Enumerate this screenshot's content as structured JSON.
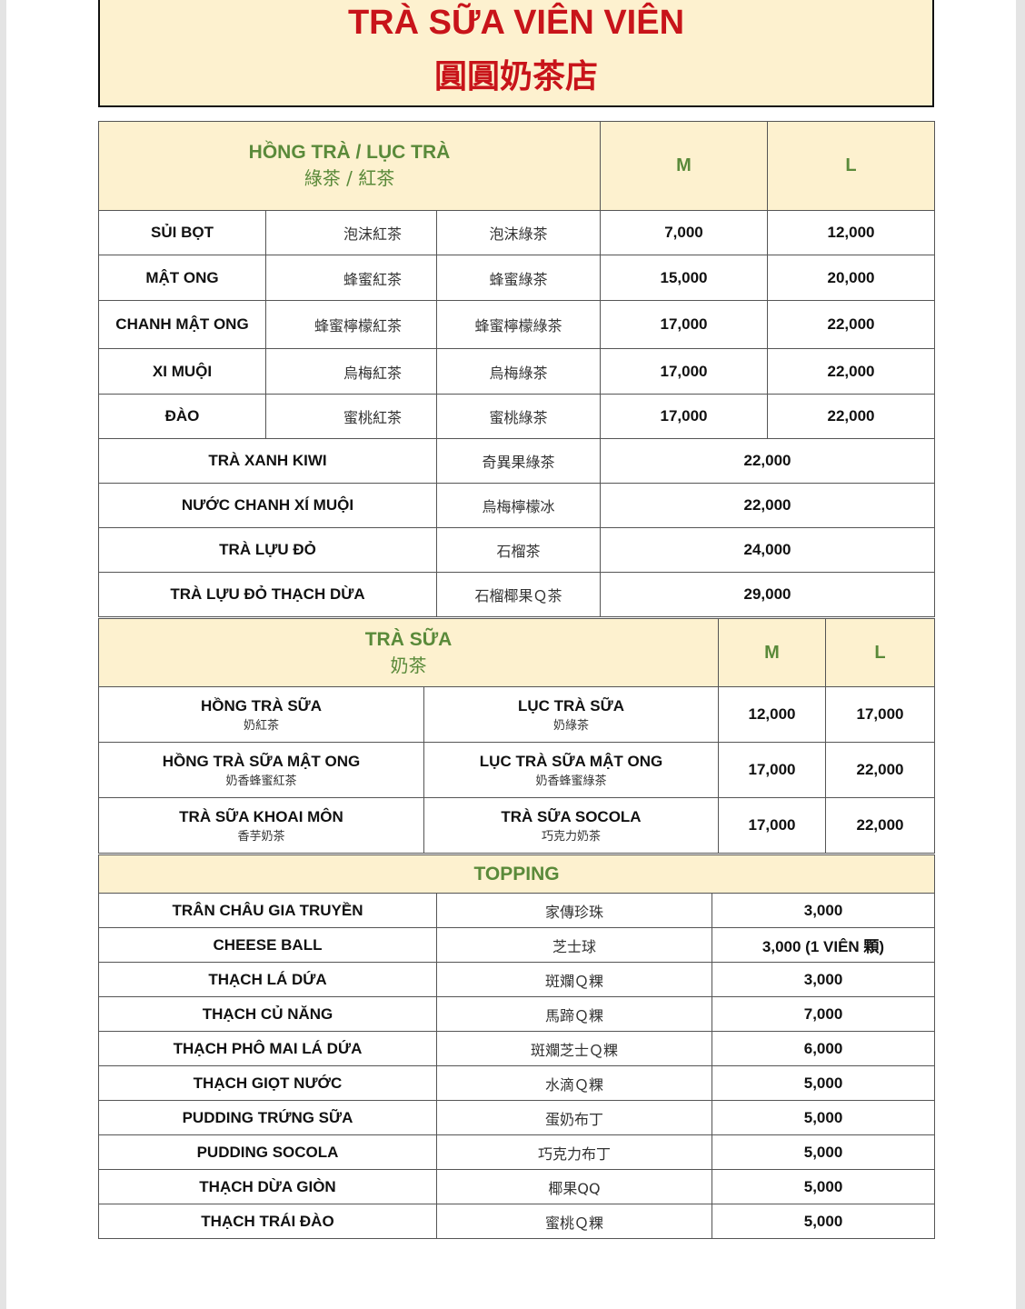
{
  "header": {
    "title_vn": "TRÀ SỮA VIÊN VIÊN",
    "title_cn": "圓圓奶茶店"
  },
  "tea": {
    "heading_vn": "HỒNG TRÀ / LỤC TRÀ",
    "heading_cn": "綠茶 / 紅茶",
    "size_m": "M",
    "size_l": "L",
    "rows": [
      {
        "name": "SỦI BỌT",
        "black_cn": "泡沫紅茶",
        "green_cn": "泡沫綠茶",
        "m": "7,000",
        "l": "12,000"
      },
      {
        "name": "MẬT ONG",
        "black_cn": "蜂蜜紅茶",
        "green_cn": "蜂蜜綠茶",
        "m": "15,000",
        "l": "20,000"
      },
      {
        "name": "CHANH MẬT ONG",
        "black_cn": "蜂蜜檸檬紅茶",
        "green_cn": "蜂蜜檸檬綠茶",
        "m": "17,000",
        "l": "22,000"
      },
      {
        "name": "XI MUỘI",
        "black_cn": "烏梅紅茶",
        "green_cn": "烏梅綠茶",
        "m": "17,000",
        "l": "22,000"
      },
      {
        "name": "ĐÀO",
        "black_cn": "蜜桃紅茶",
        "green_cn": "蜜桃綠茶",
        "m": "17,000",
        "l": "22,000"
      }
    ],
    "specials": [
      {
        "name": "TRÀ XANH KIWI",
        "cn": "奇異果綠茶",
        "price": "22,000"
      },
      {
        "name": "NƯỚC CHANH XÍ MUỘI",
        "cn": "烏梅檸檬冰",
        "price": "22,000"
      },
      {
        "name": "TRÀ LỰU ĐỎ",
        "cn": "石榴茶",
        "price": "24,000"
      },
      {
        "name": "TRÀ LỰU ĐỎ THẠCH DỪA",
        "cn": "石榴椰果Ｑ茶",
        "price": "29,000"
      }
    ]
  },
  "milk_tea": {
    "heading_vn": "TRÀ SỮA",
    "heading_cn": "奶茶",
    "size_m": "M",
    "size_l": "L",
    "rows": [
      {
        "a_vn": "HỒNG TRÀ SỮA",
        "a_cn": "奶紅茶",
        "b_vn": "LỤC TRÀ SỮA",
        "b_cn": "奶綠茶",
        "m": "12,000",
        "l": "17,000"
      },
      {
        "a_vn": "HỒNG TRÀ SỮA MẬT ONG",
        "a_cn": "奶香蜂蜜紅茶",
        "b_vn": "LỤC TRÀ SỮA MẬT ONG",
        "b_cn": "奶香蜂蜜綠茶",
        "m": "17,000",
        "l": "22,000"
      },
      {
        "a_vn": "TRÀ SỮA KHOAI MÔN",
        "a_cn": "香芋奶茶",
        "b_vn": "TRÀ SỮA SOCOLA",
        "b_cn": "巧克力奶茶",
        "m": "17,000",
        "l": "22,000"
      }
    ]
  },
  "topping": {
    "heading": "TOPPING",
    "rows": [
      {
        "name": "TRÂN CHÂU GIA TRUYỀN",
        "cn": "家傳珍珠",
        "price": "3,000"
      },
      {
        "name": "CHEESE BALL",
        "cn": "芝士球",
        "price": "3,000 (1 VIÊN 顆)"
      },
      {
        "name": "THẠCH LÁ DỨA",
        "cn": "斑斕Ｑ粿",
        "price": "3,000"
      },
      {
        "name": "THẠCH CỦ NĂNG",
        "cn": "馬蹄Ｑ粿",
        "price": "7,000"
      },
      {
        "name": "THẠCH PHÔ MAI LÁ DỨA",
        "cn": "斑斕芝士Ｑ粿",
        "price": "6,000"
      },
      {
        "name": "THẠCH GIỌT NƯỚC",
        "cn": "水滴Ｑ粿",
        "price": "5,000"
      },
      {
        "name": "PUDDING TRỨNG SỮA",
        "cn": "蛋奶布丁",
        "price": "5,000"
      },
      {
        "name": "PUDDING SOCOLA",
        "cn": "巧克力布丁",
        "price": "5,000"
      },
      {
        "name": "THẠCH DỪA GIÒN",
        "cn": "椰果QQ",
        "price": "5,000"
      },
      {
        "name": "THẠCH TRÁI ĐÀO",
        "cn": "蜜桃Ｑ粿",
        "price": "5,000"
      }
    ]
  }
}
